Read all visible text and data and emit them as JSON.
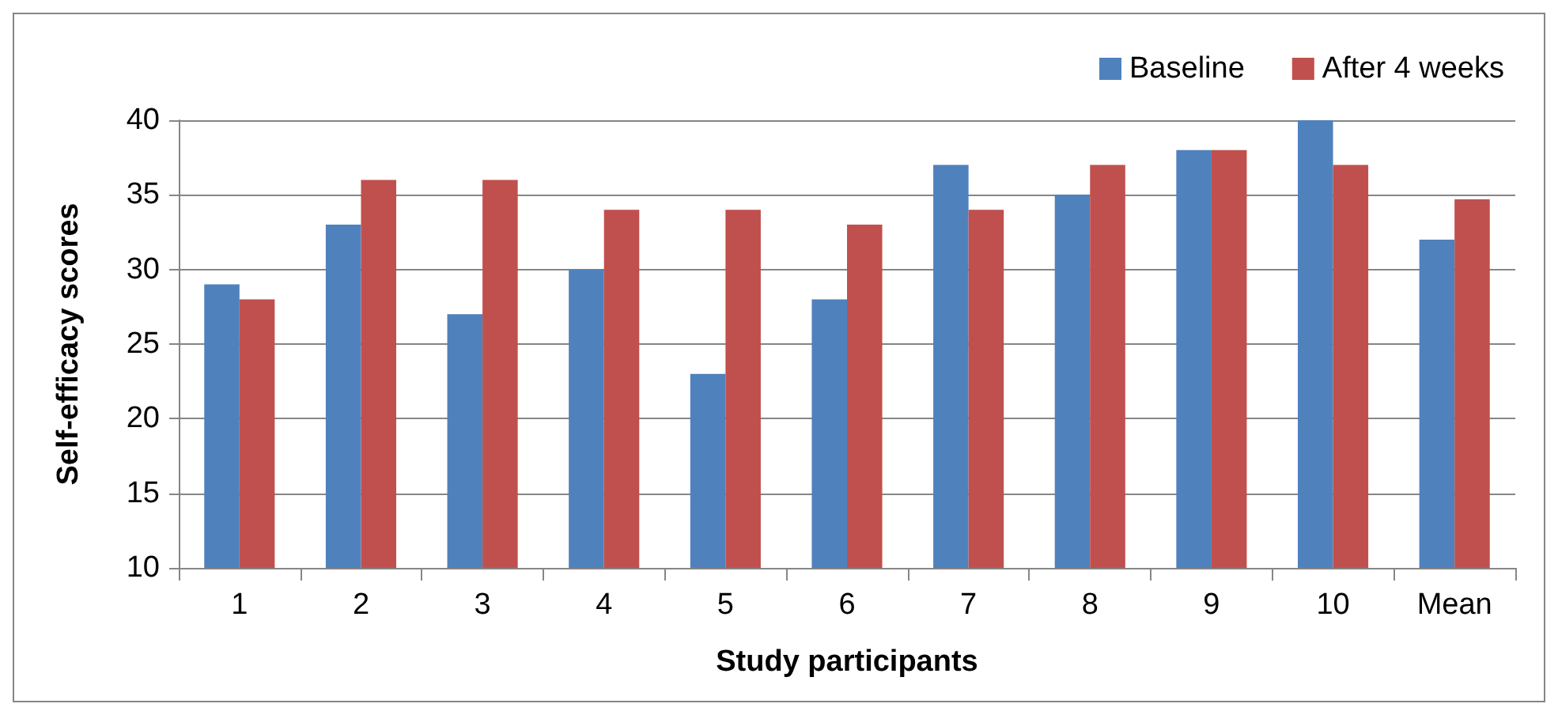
{
  "chart_data": {
    "type": "bar",
    "xlabel": "Study participants",
    "ylabel": "Self-efficacy scores",
    "categories": [
      "1",
      "2",
      "3",
      "4",
      "5",
      "6",
      "7",
      "8",
      "9",
      "10",
      "Mean"
    ],
    "series": [
      {
        "name": "Baseline",
        "color": "#4f81bd",
        "values": [
          29,
          33,
          27,
          30,
          23,
          28,
          37,
          35,
          38,
          40,
          32
        ]
      },
      {
        "name": "After 4 weeks",
        "color": "#c0504d",
        "values": [
          28,
          36,
          36,
          34,
          34,
          33,
          34,
          37,
          38,
          37,
          34.7
        ]
      }
    ],
    "ylim": [
      10,
      40
    ],
    "yticks": [
      10,
      15,
      20,
      25,
      30,
      35,
      40
    ],
    "grid": "y",
    "legend": "top right"
  }
}
